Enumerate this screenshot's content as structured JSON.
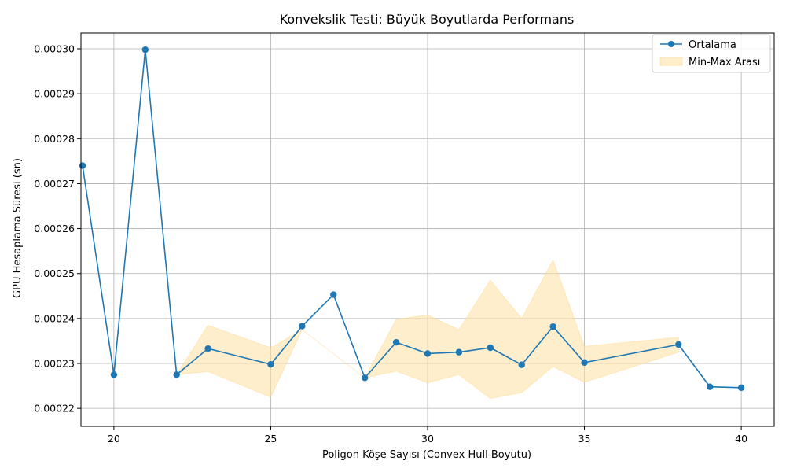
{
  "chart_data": {
    "type": "line",
    "title": "Konvekslik Testi: Büyük Boyutlarda Performans",
    "xlabel": "Poligon Köşe Sayısı (Convex Hull Boyutu)",
    "ylabel": "GPU Hesaplama Süresi (sn)",
    "xlim": [
      18.95,
      41.05
    ],
    "ylim": [
      0.000216,
      0.0003035
    ],
    "x_ticks": [
      20,
      25,
      30,
      35,
      40
    ],
    "x_tick_labels": [
      "20",
      "25",
      "30",
      "35",
      "40"
    ],
    "y_ticks": [
      0.00022,
      0.00023,
      0.00024,
      0.00025,
      0.00026,
      0.00027,
      0.00028,
      0.00029,
      0.0003
    ],
    "y_tick_labels": [
      "0.00022",
      "0.00023",
      "0.00024",
      "0.00025",
      "0.00026",
      "0.00027",
      "0.00028",
      "0.00029",
      "0.00030"
    ],
    "grid": true,
    "legend_position": "top-right",
    "series": [
      {
        "name": "Ortalama",
        "color": "#1f77b4",
        "x": [
          19,
          20,
          21,
          22,
          23,
          25,
          26,
          27,
          28,
          29,
          30,
          31,
          32,
          33,
          34,
          35,
          38,
          39,
          40
        ],
        "values": [
          0.000274,
          0.0002275,
          0.0002998,
          0.0002275,
          0.0002333,
          0.0002298,
          0.0002383,
          0.0002453,
          0.0002268,
          0.0002347,
          0.0002322,
          0.0002325,
          0.0002335,
          0.0002297,
          0.0002382,
          0.0002302,
          0.0002342,
          0.0002248,
          0.0002246
        ]
      }
    ],
    "band": {
      "name": "Min-Max Arası",
      "color": "#ffe0a0",
      "x": [
        22,
        23,
        25,
        26,
        28,
        29,
        30,
        31,
        32,
        33,
        34,
        35,
        38
      ],
      "min": [
        0.0002275,
        0.0002282,
        0.0002225,
        0.0002375,
        0.0002268,
        0.0002283,
        0.0002257,
        0.0002275,
        0.0002222,
        0.0002235,
        0.0002293,
        0.0002258,
        0.0002325
      ],
      "max": [
        0.0002275,
        0.0002385,
        0.0002335,
        0.0002375,
        0.0002268,
        0.0002398,
        0.0002408,
        0.0002375,
        0.0002485,
        0.00024,
        0.000253,
        0.0002338,
        0.0002358
      ]
    }
  }
}
